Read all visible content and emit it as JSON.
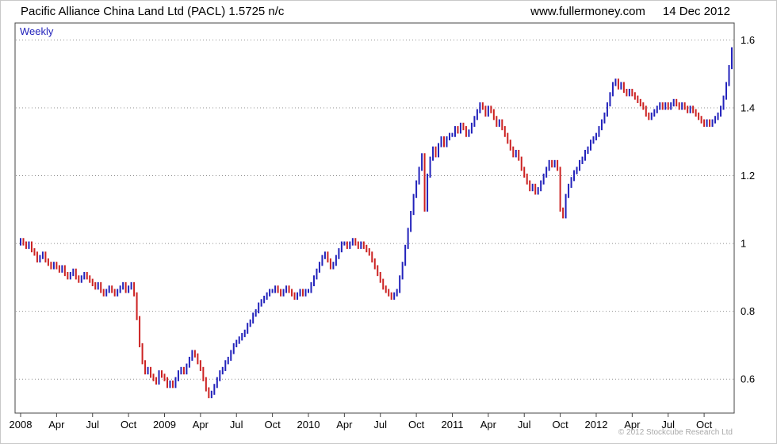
{
  "header": {
    "instrument": "Pacific Alliance China Land Ltd (PACL)",
    "quote": "1.5725 n/c",
    "site": "www.fullermoney.com",
    "date": "14 Dec 2012"
  },
  "footer": {
    "copyright": "© 2012 Stockcube Research Ltd"
  },
  "chart_data": {
    "type": "candlestick",
    "title": "Pacific Alliance China Land Ltd (PACL)",
    "frequency": "Weekly",
    "last_price": "1.5725",
    "change": "n/c",
    "grid": "horizontal dotted",
    "legend": "none",
    "ylim": [
      0.5,
      1.65
    ],
    "y_ticks": [
      0.6,
      0.8,
      1.0,
      1.2,
      1.4,
      1.6
    ],
    "y_tick_labels": [
      "0.6",
      "0.8",
      "1",
      "1.2",
      "1.4",
      "1.6"
    ],
    "x_tick_labels": [
      "2008",
      "Apr",
      "Jul",
      "Oct",
      "2009",
      "Apr",
      "Jul",
      "Oct",
      "2010",
      "Apr",
      "Jul",
      "Oct",
      "2011",
      "Apr",
      "Jul",
      "Oct",
      "2012",
      "Apr",
      "Jul",
      "Oct"
    ],
    "weeks_per_tick": 13,
    "up_color": "#2222bb",
    "down_color": "#cc2222",
    "weekly_closes": [
      1.01,
      1.0,
      0.99,
      1.0,
      0.98,
      0.97,
      0.95,
      0.96,
      0.97,
      0.95,
      0.94,
      0.93,
      0.94,
      0.93,
      0.92,
      0.93,
      0.91,
      0.9,
      0.91,
      0.92,
      0.9,
      0.89,
      0.9,
      0.91,
      0.9,
      0.89,
      0.88,
      0.87,
      0.88,
      0.86,
      0.85,
      0.86,
      0.87,
      0.86,
      0.85,
      0.86,
      0.87,
      0.88,
      0.86,
      0.87,
      0.88,
      0.85,
      0.78,
      0.7,
      0.65,
      0.62,
      0.63,
      0.61,
      0.6,
      0.59,
      0.62,
      0.61,
      0.6,
      0.58,
      0.59,
      0.58,
      0.6,
      0.62,
      0.63,
      0.62,
      0.64,
      0.66,
      0.68,
      0.67,
      0.65,
      0.63,
      0.6,
      0.57,
      0.55,
      0.56,
      0.58,
      0.6,
      0.62,
      0.63,
      0.65,
      0.66,
      0.68,
      0.7,
      0.71,
      0.72,
      0.73,
      0.74,
      0.76,
      0.77,
      0.79,
      0.8,
      0.82,
      0.83,
      0.84,
      0.85,
      0.86,
      0.86,
      0.87,
      0.86,
      0.85,
      0.86,
      0.87,
      0.86,
      0.85,
      0.84,
      0.85,
      0.86,
      0.85,
      0.86,
      0.86,
      0.88,
      0.9,
      0.92,
      0.94,
      0.96,
      0.97,
      0.95,
      0.93,
      0.94,
      0.96,
      0.98,
      1.0,
      1.0,
      0.99,
      1.0,
      1.01,
      1.0,
      0.99,
      1.0,
      0.99,
      0.98,
      0.97,
      0.95,
      0.93,
      0.91,
      0.89,
      0.87,
      0.86,
      0.85,
      0.84,
      0.85,
      0.86,
      0.9,
      0.94,
      0.99,
      1.04,
      1.09,
      1.14,
      1.18,
      1.22,
      1.26,
      1.1,
      1.2,
      1.25,
      1.28,
      1.26,
      1.29,
      1.31,
      1.29,
      1.31,
      1.32,
      1.32,
      1.34,
      1.33,
      1.35,
      1.34,
      1.32,
      1.33,
      1.35,
      1.37,
      1.39,
      1.41,
      1.4,
      1.38,
      1.4,
      1.39,
      1.37,
      1.35,
      1.36,
      1.34,
      1.32,
      1.3,
      1.28,
      1.26,
      1.27,
      1.25,
      1.22,
      1.2,
      1.18,
      1.16,
      1.17,
      1.15,
      1.16,
      1.18,
      1.2,
      1.22,
      1.24,
      1.23,
      1.24,
      1.22,
      1.1,
      1.08,
      1.14,
      1.17,
      1.19,
      1.21,
      1.22,
      1.24,
      1.25,
      1.27,
      1.28,
      1.3,
      1.31,
      1.32,
      1.34,
      1.36,
      1.38,
      1.41,
      1.44,
      1.47,
      1.48,
      1.46,
      1.47,
      1.45,
      1.44,
      1.45,
      1.44,
      1.43,
      1.42,
      1.41,
      1.4,
      1.38,
      1.37,
      1.38,
      1.39,
      1.4,
      1.41,
      1.4,
      1.41,
      1.4,
      1.41,
      1.42,
      1.41,
      1.4,
      1.41,
      1.4,
      1.39,
      1.4,
      1.39,
      1.38,
      1.37,
      1.36,
      1.35,
      1.36,
      1.35,
      1.36,
      1.37,
      1.38,
      1.4,
      1.43,
      1.47,
      1.52,
      1.5725
    ]
  }
}
